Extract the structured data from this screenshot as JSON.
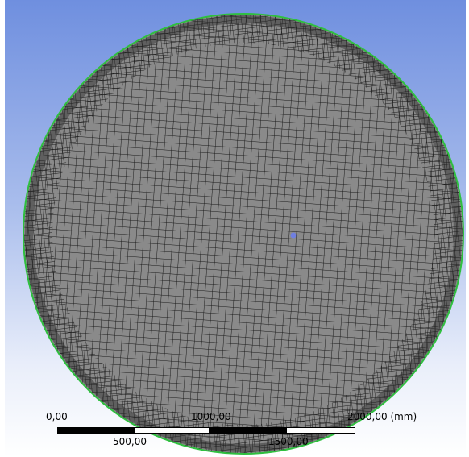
{
  "viewport": {
    "background_top": "#6f8fdf",
    "background_bottom": "#ffffff",
    "mesh_fill": "#8a8a8a",
    "mesh_line": "#1a1a1a",
    "boundary_color": "#2fbf3f",
    "origin_marker_color": "#6f7fe0"
  },
  "scale_bar": {
    "tick_0": "0,00",
    "tick_500": "500,00",
    "tick_1000": "1000,00",
    "tick_1500": "1500,00",
    "tick_2000": "2000,00 (mm)"
  }
}
